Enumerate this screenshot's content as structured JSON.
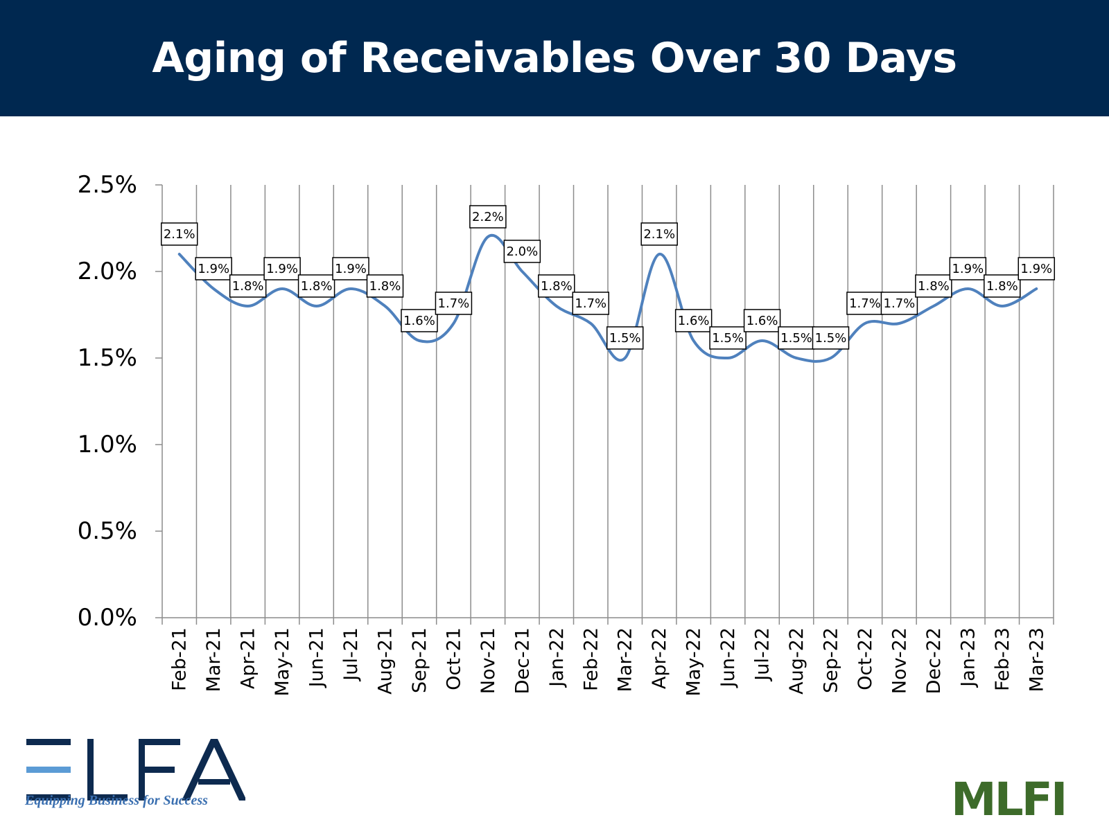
{
  "title": "Aging of Receivables Over 30 Days",
  "chart_data": {
    "type": "line",
    "categories": [
      "Feb-21",
      "Mar-21",
      "Apr-21",
      "May-21",
      "Jun-21",
      "Jul-21",
      "Aug-21",
      "Sep-21",
      "Oct-21",
      "Nov-21",
      "Dec-21",
      "Jan-22",
      "Feb-22",
      "Mar-22",
      "Apr-22",
      "May-22",
      "Jun-22",
      "Jul-22",
      "Aug-22",
      "Sep-22",
      "Oct-22",
      "Nov-22",
      "Dec-22",
      "Jan-23",
      "Feb-23",
      "Mar-23"
    ],
    "values": [
      2.1,
      1.9,
      1.8,
      1.9,
      1.8,
      1.9,
      1.8,
      1.6,
      1.7,
      2.2,
      2.0,
      1.8,
      1.7,
      1.5,
      2.1,
      1.6,
      1.5,
      1.6,
      1.5,
      1.5,
      1.7,
      1.7,
      1.8,
      1.9,
      1.8,
      1.9
    ],
    "data_labels": [
      "2.1%",
      "1.9%",
      "1.8%",
      "1.9%",
      "1.8%",
      "1.9%",
      "1.8%",
      "1.6%",
      "1.7%",
      "2.2%",
      "2.0%",
      "1.8%",
      "1.7%",
      "1.5%",
      "2.1%",
      "1.6%",
      "1.5%",
      "1.6%",
      "1.5%",
      "1.5%",
      "1.7%",
      "1.7%",
      "1.8%",
      "1.9%",
      "1.8%",
      "1.9%"
    ],
    "y_ticks": [
      0,
      0.5,
      1.0,
      1.5,
      2.0,
      2.5
    ],
    "y_tick_labels": [
      "0.0%",
      "0.5%",
      "1.0%",
      "1.5%",
      "2.0%",
      "2.5%"
    ],
    "ylim": [
      0,
      2.5
    ],
    "xlabel": "",
    "ylabel": "",
    "grid": "vertical",
    "legend": "none",
    "line_color": "#4f81bd"
  },
  "logos": {
    "elfa_name": "ELFA",
    "elfa_tagline": "Equipping Business for Success",
    "mlfi_name": "MLFI",
    "elfa_color": "#0d2a4f",
    "elfa_accent": "#5b9bd5",
    "mlfi_color": "#3d6b2a"
  }
}
